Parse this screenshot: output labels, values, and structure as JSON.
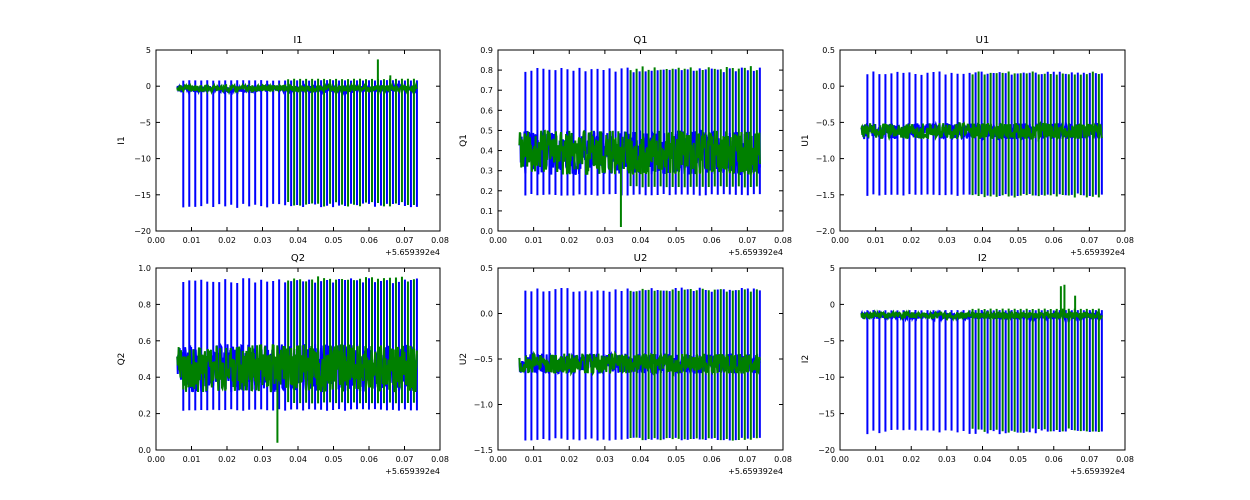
{
  "chart_data": [
    {
      "type": "line",
      "title": "I1",
      "xlabel": "",
      "ylabel": "I1",
      "xlim": [
        0.0,
        0.08
      ],
      "ylim": [
        -20,
        5
      ],
      "x_offset_label": "+5.659392e4",
      "x_ticks": [
        0.0,
        0.01,
        0.02,
        0.03,
        0.04,
        0.05,
        0.06,
        0.07,
        0.08
      ],
      "x_tick_labels": [
        "0.00",
        "0.01",
        "0.02",
        "0.03",
        "0.04",
        "0.05",
        "0.06",
        "0.07",
        "0.08"
      ],
      "y_ticks": [
        -20,
        -15,
        -10,
        -5,
        0,
        5
      ],
      "y_tick_labels": [
        "−20",
        "−15",
        "−10",
        "−5",
        "0",
        "5"
      ],
      "x_range": [
        0.006,
        0.0735
      ],
      "series": [
        {
          "color": "#0000ff",
          "baseline": -0.4,
          "noise": 0.2,
          "spike_low": -16.5,
          "spike_high": 0.8,
          "n_spikes": 40,
          "start": 0.006,
          "end": 0.0735,
          "spike_last": 0.0735
        },
        {
          "color": "#008000",
          "baseline": -0.3,
          "noise": 0.2,
          "spike_low": -16.3,
          "spike_high": 1.0,
          "n_spikes": 40,
          "start": 0.006,
          "end": 0.0735,
          "spike_first": 0.036,
          "spike_last": 0.0735,
          "extra_peaks": [
            [
              0.0625,
              3.7
            ],
            [
              0.066,
              1.5
            ]
          ]
        }
      ]
    },
    {
      "type": "line",
      "title": "Q1",
      "xlabel": "",
      "ylabel": "Q1",
      "xlim": [
        0.0,
        0.08
      ],
      "ylim": [
        0.0,
        0.9
      ],
      "x_offset_label": "+5.659392e4",
      "x_ticks": [
        0.0,
        0.01,
        0.02,
        0.03,
        0.04,
        0.05,
        0.06,
        0.07,
        0.08
      ],
      "x_tick_labels": [
        "0.00",
        "0.01",
        "0.02",
        "0.03",
        "0.04",
        "0.05",
        "0.06",
        "0.07",
        "0.08"
      ],
      "y_ticks": [
        0.0,
        0.1,
        0.2,
        0.3,
        0.4,
        0.5,
        0.6,
        0.7,
        0.8,
        0.9
      ],
      "y_tick_labels": [
        "0.0",
        "0.1",
        "0.2",
        "0.3",
        "0.4",
        "0.5",
        "0.6",
        "0.7",
        "0.8",
        "0.9"
      ],
      "x_range": [
        0.006,
        0.0735
      ],
      "series": [
        {
          "color": "#0000ff",
          "baseline": 0.39,
          "noise": 0.05,
          "spike_low": 0.18,
          "spike_high": 0.8,
          "n_spikes": 40,
          "start": 0.006,
          "end": 0.0735,
          "spike_last": 0.0735
        },
        {
          "color": "#008000",
          "baseline": 0.39,
          "noise": 0.05,
          "spike_low": 0.22,
          "spike_high": 0.81,
          "n_spikes": 40,
          "start": 0.006,
          "end": 0.0735,
          "spike_first": 0.036,
          "spike_last": 0.0735,
          "extra_peaks": [
            [
              0.0345,
              0.02
            ]
          ]
        }
      ]
    },
    {
      "type": "line",
      "title": "U1",
      "xlabel": "",
      "ylabel": "U1",
      "xlim": [
        0.0,
        0.08
      ],
      "ylim": [
        -2.0,
        0.5
      ],
      "x_offset_label": "+5.659392e4",
      "x_ticks": [
        0.0,
        0.01,
        0.02,
        0.03,
        0.04,
        0.05,
        0.06,
        0.07,
        0.08
      ],
      "x_tick_labels": [
        "0.00",
        "0.01",
        "0.02",
        "0.03",
        "0.04",
        "0.05",
        "0.06",
        "0.07",
        "0.08"
      ],
      "y_ticks": [
        -2.0,
        -1.5,
        -1.0,
        -0.5,
        0.0,
        0.5
      ],
      "y_tick_labels": [
        "−2.0",
        "−1.5",
        "−1.0",
        "−0.5",
        "0.0",
        "0.5"
      ],
      "x_range": [
        0.006,
        0.0735
      ],
      "series": [
        {
          "color": "#0000ff",
          "baseline": -0.62,
          "noise": 0.05,
          "spike_low": -1.5,
          "spike_high": 0.18,
          "n_spikes": 40,
          "start": 0.006,
          "end": 0.0735,
          "spike_last": 0.0735
        },
        {
          "color": "#008000",
          "baseline": -0.62,
          "noise": 0.05,
          "spike_low": -1.52,
          "spike_high": 0.18,
          "n_spikes": 40,
          "start": 0.006,
          "end": 0.0735,
          "spike_first": 0.036,
          "spike_last": 0.0735
        }
      ]
    },
    {
      "type": "line",
      "title": "Q2",
      "xlabel": "",
      "ylabel": "Q2",
      "xlim": [
        0.0,
        0.08
      ],
      "ylim": [
        0.0,
        1.0
      ],
      "x_offset_label": "+5.659392e4",
      "x_ticks": [
        0.0,
        0.01,
        0.02,
        0.03,
        0.04,
        0.05,
        0.06,
        0.07,
        0.08
      ],
      "x_tick_labels": [
        "0.00",
        "0.01",
        "0.02",
        "0.03",
        "0.04",
        "0.05",
        "0.06",
        "0.07",
        "0.08"
      ],
      "y_ticks": [
        0.0,
        0.2,
        0.4,
        0.6,
        0.8,
        1.0
      ],
      "y_tick_labels": [
        "0.0",
        "0.2",
        "0.4",
        "0.6",
        "0.8",
        "1.0"
      ],
      "x_range": [
        0.006,
        0.0735
      ],
      "series": [
        {
          "color": "#0000ff",
          "baseline": 0.45,
          "noise": 0.06,
          "spike_low": 0.22,
          "spike_high": 0.93,
          "n_spikes": 40,
          "start": 0.006,
          "end": 0.0735,
          "spike_last": 0.0735
        },
        {
          "color": "#008000",
          "baseline": 0.45,
          "noise": 0.06,
          "spike_low": 0.26,
          "spike_high": 0.94,
          "n_spikes": 40,
          "start": 0.006,
          "end": 0.0735,
          "spike_first": 0.036,
          "spike_last": 0.0735,
          "extra_peaks": [
            [
              0.0342,
              0.04
            ]
          ]
        }
      ]
    },
    {
      "type": "line",
      "title": "U2",
      "xlabel": "",
      "ylabel": "U2",
      "xlim": [
        0.0,
        0.08
      ],
      "ylim": [
        -1.5,
        0.5
      ],
      "x_offset_label": "+5.659392e4",
      "x_ticks": [
        0.0,
        0.01,
        0.02,
        0.03,
        0.04,
        0.05,
        0.06,
        0.07,
        0.08
      ],
      "x_tick_labels": [
        "0.00",
        "0.01",
        "0.02",
        "0.03",
        "0.04",
        "0.05",
        "0.06",
        "0.07",
        "0.08"
      ],
      "y_ticks": [
        -1.5,
        -1.0,
        -0.5,
        0.0,
        0.5
      ],
      "y_tick_labels": [
        "−1.5",
        "−1.0",
        "−0.5",
        "0.0",
        "0.5"
      ],
      "x_range": [
        0.006,
        0.0735
      ],
      "series": [
        {
          "color": "#0000ff",
          "baseline": -0.55,
          "noise": 0.05,
          "spike_low": -1.38,
          "spike_high": 0.26,
          "n_spikes": 40,
          "start": 0.006,
          "end": 0.0735,
          "spike_last": 0.0735
        },
        {
          "color": "#008000",
          "baseline": -0.55,
          "noise": 0.05,
          "spike_low": -1.38,
          "spike_high": 0.26,
          "n_spikes": 40,
          "start": 0.006,
          "end": 0.0735,
          "spike_first": 0.036,
          "spike_last": 0.0735
        }
      ]
    },
    {
      "type": "line",
      "title": "I2",
      "xlabel": "",
      "ylabel": "I2",
      "xlim": [
        0.0,
        0.08
      ],
      "ylim": [
        -20,
        5
      ],
      "x_offset_label": "+5.659392e4",
      "x_ticks": [
        0.0,
        0.01,
        0.02,
        0.03,
        0.04,
        0.05,
        0.06,
        0.07,
        0.08
      ],
      "x_tick_labels": [
        "0.00",
        "0.01",
        "0.02",
        "0.03",
        "0.04",
        "0.05",
        "0.06",
        "0.07",
        "0.08"
      ],
      "y_ticks": [
        -20,
        -15,
        -10,
        -5,
        0,
        5
      ],
      "y_tick_labels": [
        "−20",
        "−15",
        "−10",
        "−5",
        "0",
        "5"
      ],
      "x_range": [
        0.006,
        0.0735
      ],
      "series": [
        {
          "color": "#0000ff",
          "baseline": -1.6,
          "noise": 0.2,
          "spike_low": -17.5,
          "spike_high": -0.8,
          "n_spikes": 40,
          "start": 0.006,
          "end": 0.0735,
          "spike_last": 0.0735
        },
        {
          "color": "#008000",
          "baseline": -1.5,
          "noise": 0.2,
          "spike_low": -17.3,
          "spike_high": -0.6,
          "n_spikes": 40,
          "start": 0.006,
          "end": 0.0735,
          "spike_first": 0.036,
          "spike_last": 0.0735,
          "extra_peaks": [
            [
              0.062,
              2.5
            ],
            [
              0.063,
              2.7
            ],
            [
              0.066,
              1.2
            ]
          ]
        }
      ]
    }
  ]
}
